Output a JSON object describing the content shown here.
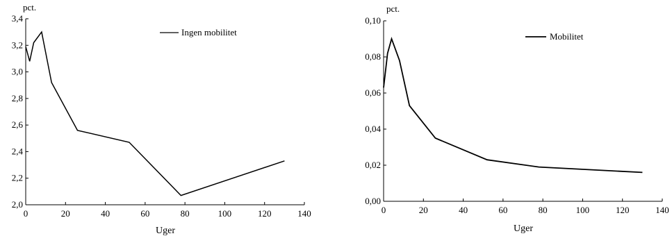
{
  "chart_data": [
    {
      "type": "line",
      "title": "",
      "ylabel_unit": "pct.",
      "xlabel": "Uger",
      "xlim": [
        0,
        140
      ],
      "ylim": [
        2.0,
        3.4
      ],
      "xticks": [
        0,
        20,
        40,
        60,
        80,
        100,
        120,
        140
      ],
      "xtick_labels": [
        "0",
        "20",
        "40",
        "60",
        "80",
        "100",
        "120",
        "140"
      ],
      "yticks": [
        2.0,
        2.2,
        2.4,
        2.6,
        2.8,
        3.0,
        3.2,
        3.4
      ],
      "ytick_labels": [
        "2,0",
        "2,2",
        "2,4",
        "2,6",
        "2,8",
        "3,0",
        "3,2",
        "3,4"
      ],
      "grid": false,
      "legend_position": "top-right",
      "series": [
        {
          "name": "Ingen mobilitet",
          "color": "#000000",
          "x": [
            0,
            2,
            4,
            8,
            13,
            26,
            52,
            78,
            130
          ],
          "y": [
            3.19,
            3.08,
            3.22,
            3.3,
            2.92,
            2.56,
            2.47,
            2.07,
            2.33
          ]
        }
      ]
    },
    {
      "type": "line",
      "title": "",
      "ylabel_unit": "pct.",
      "xlabel": "Uger",
      "xlim": [
        0,
        140
      ],
      "ylim": [
        0.0,
        0.1
      ],
      "xticks": [
        0,
        20,
        40,
        60,
        80,
        100,
        120,
        140
      ],
      "xtick_labels": [
        "0",
        "20",
        "40",
        "60",
        "80",
        "100",
        "120",
        "140"
      ],
      "yticks": [
        0.0,
        0.02,
        0.04,
        0.06,
        0.08,
        0.1
      ],
      "ytick_labels": [
        "0,00",
        "0,02",
        "0,04",
        "0,06",
        "0,08",
        "0,10"
      ],
      "grid": false,
      "legend_position": "top-right",
      "series": [
        {
          "name": "Mobilitet",
          "color": "#000000",
          "x": [
            0,
            2,
            4,
            8,
            13,
            26,
            52,
            78,
            130
          ],
          "y": [
            0.063,
            0.082,
            0.09,
            0.078,
            0.053,
            0.035,
            0.023,
            0.019,
            0.016
          ]
        }
      ]
    }
  ]
}
